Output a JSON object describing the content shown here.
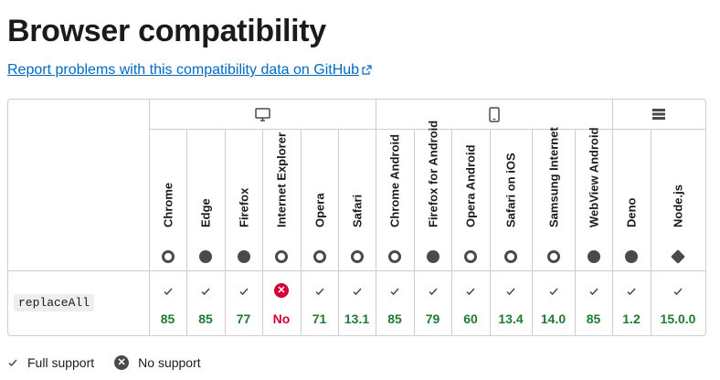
{
  "page": {
    "title": "Browser compatibility",
    "report_link": "Report problems with this compatibility data on GitHub"
  },
  "groups": [
    {
      "icon": "desktop-icon"
    },
    {
      "icon": "mobile-icon"
    },
    {
      "icon": "server-icon"
    }
  ],
  "browsers": [
    {
      "name": "Chrome",
      "icon": "chrome-icon"
    },
    {
      "name": "Edge",
      "icon": "edge-icon"
    },
    {
      "name": "Firefox",
      "icon": "firefox-icon"
    },
    {
      "name": "Internet Explorer",
      "icon": "internet-explorer-icon"
    },
    {
      "name": "Opera",
      "icon": "opera-icon"
    },
    {
      "name": "Safari",
      "icon": "safari-icon"
    },
    {
      "name": "Chrome Android",
      "icon": "chrome-icon"
    },
    {
      "name": "Firefox for Android",
      "icon": "firefox-icon"
    },
    {
      "name": "Opera Android",
      "icon": "opera-icon"
    },
    {
      "name": "Safari on iOS",
      "icon": "safari-icon"
    },
    {
      "name": "Samsung Internet",
      "icon": "samsung-internet-icon"
    },
    {
      "name": "WebView Android",
      "icon": "android-icon"
    },
    {
      "name": "Deno",
      "icon": "deno-icon"
    },
    {
      "name": "Node.js",
      "icon": "nodejs-icon"
    }
  ],
  "feature": {
    "name": "replaceAll",
    "support": [
      {
        "status": "yes",
        "version": "85"
      },
      {
        "status": "yes",
        "version": "85"
      },
      {
        "status": "yes",
        "version": "77"
      },
      {
        "status": "no",
        "version": "No"
      },
      {
        "status": "yes",
        "version": "71"
      },
      {
        "status": "yes",
        "version": "13.1"
      },
      {
        "status": "yes",
        "version": "85"
      },
      {
        "status": "yes",
        "version": "79"
      },
      {
        "status": "yes",
        "version": "60"
      },
      {
        "status": "yes",
        "version": "13.4"
      },
      {
        "status": "yes",
        "version": "14.0"
      },
      {
        "status": "yes",
        "version": "85"
      },
      {
        "status": "yes",
        "version": "1.2"
      },
      {
        "status": "yes",
        "version": "15.0.0"
      }
    ]
  },
  "legend": {
    "full_support": "Full support",
    "no_support": "No support"
  },
  "colors": {
    "link": "#0069c2",
    "supported": "#1e7b34",
    "unsupported": "#d30038",
    "border": "#cdcdcd"
  }
}
